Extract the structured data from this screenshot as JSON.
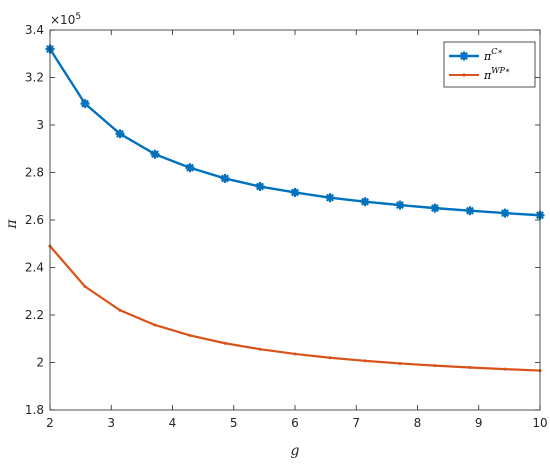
{
  "chart_data": {
    "type": "line",
    "xlabel": "g",
    "ylabel": "π",
    "y_exponent_base": "×10",
    "y_exponent_power": "5",
    "xlim": [
      2,
      10
    ],
    "ylim": [
      1.8,
      3.4
    ],
    "xticks": [
      "2",
      "3",
      "4",
      "5",
      "6",
      "7",
      "8",
      "9",
      "10"
    ],
    "yticks": [
      "1.8",
      "2",
      "2.2",
      "2.4",
      "2.6",
      "2.8",
      "3",
      "3.2",
      "3.4"
    ],
    "grid": false,
    "legend_position": "top-right",
    "series": [
      {
        "name": "π",
        "name_sup": "C∗",
        "color": "#0072bd",
        "marker": "asterisk",
        "x": [
          2.0,
          2.571,
          3.143,
          3.714,
          4.286,
          4.857,
          5.429,
          6.0,
          6.571,
          7.143,
          7.714,
          8.286,
          8.857,
          9.429,
          10.0
        ],
        "values": [
          3.32,
          3.09,
          2.963,
          2.877,
          2.82,
          2.775,
          2.741,
          2.716,
          2.694,
          2.677,
          2.663,
          2.65,
          2.639,
          2.629,
          2.62
        ]
      },
      {
        "name": "π",
        "name_sup": "WP∗",
        "color": "#d95319",
        "marker": "dot",
        "x": [
          2.0,
          2.571,
          3.143,
          3.714,
          4.286,
          4.857,
          5.429,
          6.0,
          6.571,
          7.143,
          7.714,
          8.286,
          8.857,
          9.429,
          10.0
        ],
        "values": [
          2.49,
          2.32,
          2.22,
          2.158,
          2.114,
          2.081,
          2.056,
          2.036,
          2.02,
          2.007,
          1.996,
          1.987,
          1.979,
          1.972,
          1.966
        ]
      }
    ]
  }
}
